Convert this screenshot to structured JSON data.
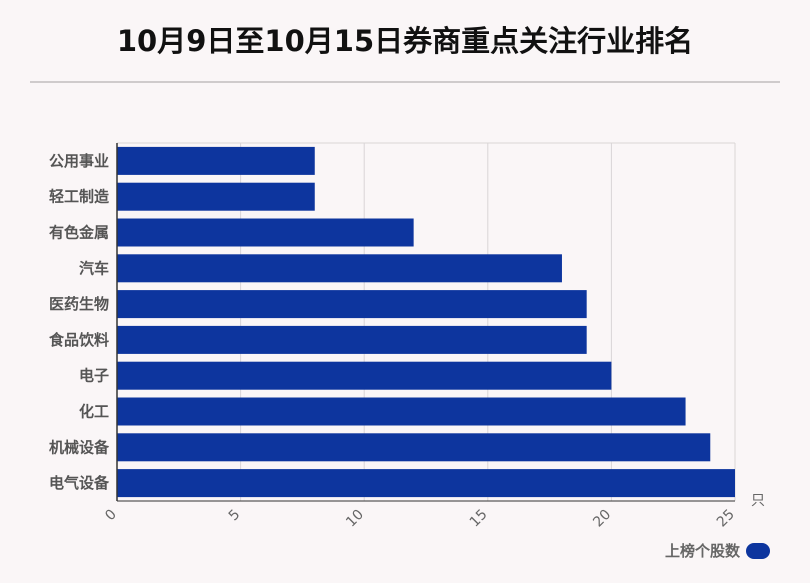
{
  "title": "10月9日至10月15日券商重点关注行业排名",
  "legend": {
    "label": "上榜个股数"
  },
  "unit_label": "只",
  "colors": {
    "bar": "#0d359e",
    "grid": "#d9d5d6",
    "axis": "#333333"
  },
  "chart_data": {
    "type": "bar",
    "orientation": "horizontal",
    "title": "10月9日至10月15日券商重点关注行业排名",
    "categories": [
      "公用事业",
      "轻工制造",
      "有色金属",
      "汽车",
      "医药生物",
      "食品饮料",
      "电子",
      "化工",
      "机械设备",
      "电气设备"
    ],
    "series": [
      {
        "name": "上榜个股数",
        "values": [
          8,
          8,
          12,
          18,
          19,
          19,
          20,
          23,
          24,
          25
        ]
      }
    ],
    "xlim": [
      0,
      25
    ],
    "xticks": [
      0,
      5,
      10,
      15,
      20,
      25
    ],
    "xunit": "只",
    "grid": true,
    "legend_position": "bottom-right"
  }
}
